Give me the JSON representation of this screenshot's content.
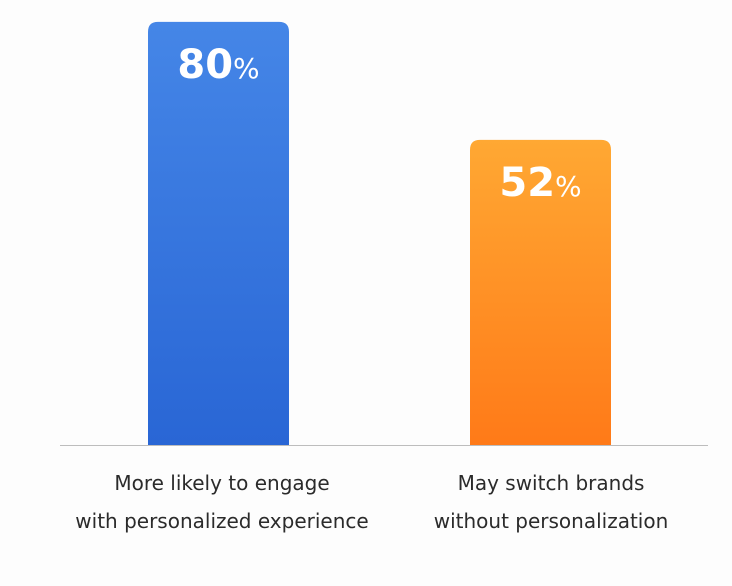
{
  "chart_data": {
    "type": "bar",
    "categories": [
      [
        "More likely to engage",
        "with personalized experience"
      ],
      [
        "May switch brands",
        "without personalization"
      ]
    ],
    "values": [
      80,
      52
    ],
    "value_labels": [
      "80",
      "52"
    ],
    "unit": "%",
    "colors": [
      [
        "#4586e7",
        "#2966d5"
      ],
      [
        "#ffa833",
        "#ff7a18"
      ]
    ],
    "grid": false,
    "legend": "none"
  }
}
